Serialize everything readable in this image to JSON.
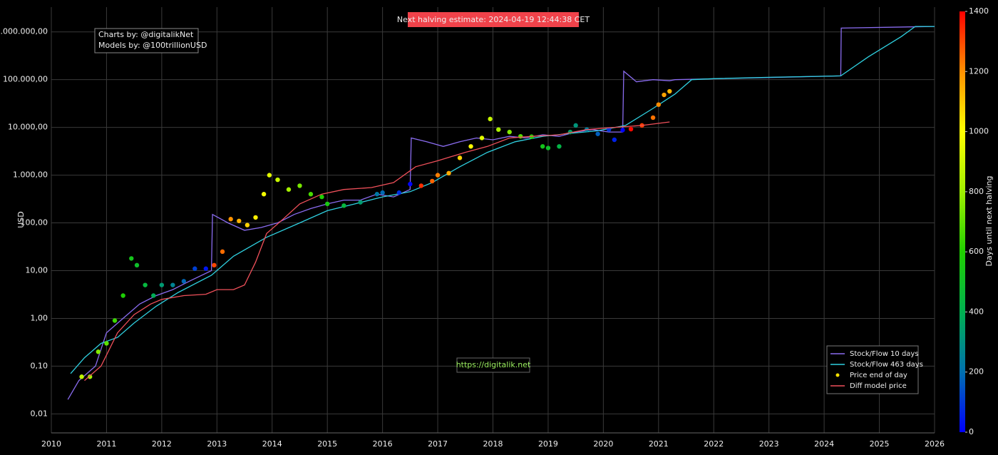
{
  "chart_data": {
    "type": "scatter-line",
    "y_scale": "log",
    "grid": true,
    "legend_position": "bottom-right",
    "y_axis_title": "USD",
    "annotations": {
      "halving": "Next halving estimate: 2024-04-19 12:44:38 CET",
      "charts_by": "Charts by: @digitalikNet",
      "models_by": "Models by: @100trillionUSD",
      "link": "https://digitalik.net"
    },
    "xlim": [
      2010,
      2026
    ],
    "xticks": [
      2010,
      2011,
      2012,
      2013,
      2014,
      2015,
      2016,
      2017,
      2018,
      2019,
      2020,
      2021,
      2022,
      2023,
      2024,
      2025,
      2026
    ],
    "ylim": [
      0.004,
      3300000
    ],
    "yticks": [
      {
        "value": 0.01,
        "label": "0,01"
      },
      {
        "value": 0.1,
        "label": "0,10"
      },
      {
        "value": 1,
        "label": "1,00"
      },
      {
        "value": 10,
        "label": "10,00"
      },
      {
        "value": 100,
        "label": "100,00"
      },
      {
        "value": 1000,
        "label": "1.000,00"
      },
      {
        "value": 10000,
        "label": "10.000,00"
      },
      {
        "value": 100000,
        "label": "100.000,00"
      },
      {
        "value": 1000000,
        "label": "1.000.000,00"
      }
    ],
    "colorbar": {
      "title": "Days until next halving",
      "range": [
        0,
        1400
      ],
      "ticks": [
        0,
        200,
        400,
        600,
        800,
        1000,
        1200,
        1400
      ],
      "colorscale": [
        "#0000ff",
        "#0070b0",
        "#00b050",
        "#20d000",
        "#a0f000",
        "#ffff00",
        "#ff9000",
        "#ff0000"
      ]
    },
    "series": [
      {
        "name": "Stock/Flow 10 days",
        "kind": "line",
        "color": "#8a6cf0",
        "x": [
          2010.3,
          2010.5,
          2010.8,
          2011.0,
          2011.3,
          2011.6,
          2011.9,
          2012.2,
          2012.5,
          2012.9,
          2012.92,
          2013.2,
          2013.5,
          2013.8,
          2014.1,
          2014.4,
          2014.7,
          2015.0,
          2015.3,
          2015.6,
          2015.9,
          2016.2,
          2016.5,
          2016.52,
          2016.8,
          2017.1,
          2017.4,
          2017.7,
          2018.0,
          2018.3,
          2018.6,
          2018.9,
          2019.2,
          2019.5,
          2019.8,
          2020.1,
          2020.35,
          2020.37,
          2020.6,
          2020.9,
          2021.2,
          2021.3,
          2024.3,
          2024.31,
          2026
        ],
        "values": [
          0.02,
          0.05,
          0.1,
          0.5,
          1,
          2,
          3,
          4,
          6,
          10,
          150,
          100,
          70,
          80,
          100,
          150,
          200,
          250,
          300,
          300,
          400,
          350,
          500,
          6000,
          5000,
          4000,
          5000,
          6000,
          5500,
          6500,
          6000,
          7000,
          6500,
          8000,
          9000,
          8000,
          8000,
          150000,
          90000,
          100000,
          95000,
          100000,
          120000,
          1200000,
          1300000
        ]
      },
      {
        "name": "Stock/Flow 463 days",
        "kind": "line",
        "color": "#2fd0e0",
        "x": [
          2010.35,
          2010.6,
          2010.9,
          2011.2,
          2011.5,
          2011.9,
          2012.3,
          2012.9,
          2013.3,
          2013.9,
          2014.5,
          2015.0,
          2015.5,
          2016.0,
          2016.5,
          2016.9,
          2017.4,
          2017.9,
          2018.4,
          2018.9,
          2019.4,
          2019.9,
          2020.4,
          2020.9,
          2021.3,
          2021.6,
          2022,
          2023,
          2024.3,
          2024.8,
          2025.4,
          2025.65,
          2026
        ],
        "values": [
          0.07,
          0.15,
          0.3,
          0.4,
          0.8,
          1.8,
          3.5,
          8,
          20,
          50,
          100,
          180,
          250,
          350,
          450,
          700,
          1500,
          3000,
          5000,
          6500,
          7500,
          8500,
          11000,
          25000,
          50000,
          100000,
          105000,
          112000,
          120000,
          300000,
          800000,
          1300000,
          1300000
        ]
      },
      {
        "name": "Price end of day",
        "kind": "points",
        "color": "#f5e000",
        "x": [
          2010.55,
          2010.7,
          2010.85,
          2011.0,
          2011.15,
          2011.3,
          2011.45,
          2011.55,
          2011.7,
          2011.85,
          2012.0,
          2012.2,
          2012.4,
          2012.6,
          2012.8,
          2012.95,
          2013.1,
          2013.25,
          2013.4,
          2013.55,
          2013.7,
          2013.85,
          2013.95,
          2014.1,
          2014.3,
          2014.5,
          2014.7,
          2014.9,
          2015.0,
          2015.3,
          2015.6,
          2015.9,
          2016.0,
          2016.3,
          2016.5,
          2016.7,
          2016.9,
          2017.0,
          2017.2,
          2017.4,
          2017.6,
          2017.8,
          2017.95,
          2018.1,
          2018.3,
          2018.5,
          2018.7,
          2018.9,
          2019.0,
          2019.2,
          2019.4,
          2019.5,
          2019.7,
          2019.9,
          2020.1,
          2020.2,
          2020.35,
          2020.5,
          2020.7,
          2020.9,
          2021.0,
          2021.1,
          2021.2
        ],
        "values": [
          0.06,
          0.06,
          0.2,
          0.3,
          0.9,
          3,
          18,
          13,
          5,
          3,
          5,
          5,
          6,
          11,
          11,
          13,
          25,
          120,
          110,
          90,
          130,
          400,
          1000,
          800,
          500,
          600,
          400,
          350,
          250,
          230,
          270,
          400,
          430,
          430,
          650,
          600,
          750,
          1000,
          1100,
          2300,
          4000,
          6000,
          15000,
          9000,
          8000,
          6500,
          6400,
          4000,
          3700,
          4000,
          8000,
          11000,
          9000,
          7300,
          9000,
          5500,
          8800,
          9200,
          11000,
          16000,
          30000,
          48000,
          57000
        ],
        "colors": [
          861,
          807,
          752,
          697,
          642,
          588,
          533,
          496,
          442,
          387,
          332,
          259,
          186,
          113,
          40,
          1303,
          1248,
          1194,
          1139,
          1084,
          1029,
          975,
          938,
          883,
          810,
          737,
          664,
          591,
          555,
          445,
          336,
          226,
          190,
          80,
          7,
          1336,
          1263,
          1226,
          1153,
          1080,
          1007,
          935,
          880,
          825,
          752,
          679,
          606,
          533,
          496,
          423,
          350,
          314,
          241,
          168,
          95,
          58,
          4,
          1387,
          1314,
          1241,
          1205,
          1168,
          1132
        ]
      },
      {
        "name": "Diff model price",
        "kind": "line",
        "color": "#f0505a",
        "x": [
          2010.6,
          2010.9,
          2011.2,
          2011.5,
          2011.8,
          2012.0,
          2012.4,
          2012.8,
          2013.0,
          2013.3,
          2013.5,
          2013.7,
          2013.9,
          2014.2,
          2014.5,
          2014.9,
          2015.3,
          2015.8,
          2016.2,
          2016.6,
          2017.0,
          2017.5,
          2017.9,
          2018.3,
          2018.7,
          2019.2,
          2019.7,
          2020.2,
          2020.7,
          2021.2
        ],
        "values": [
          0.05,
          0.1,
          0.5,
          1.2,
          2,
          2.5,
          3,
          3.2,
          4,
          4,
          5,
          15,
          60,
          120,
          250,
          400,
          500,
          550,
          700,
          1500,
          2000,
          3000,
          4000,
          6000,
          6500,
          7000,
          9000,
          10000,
          11000,
          13000
        ]
      }
    ]
  }
}
